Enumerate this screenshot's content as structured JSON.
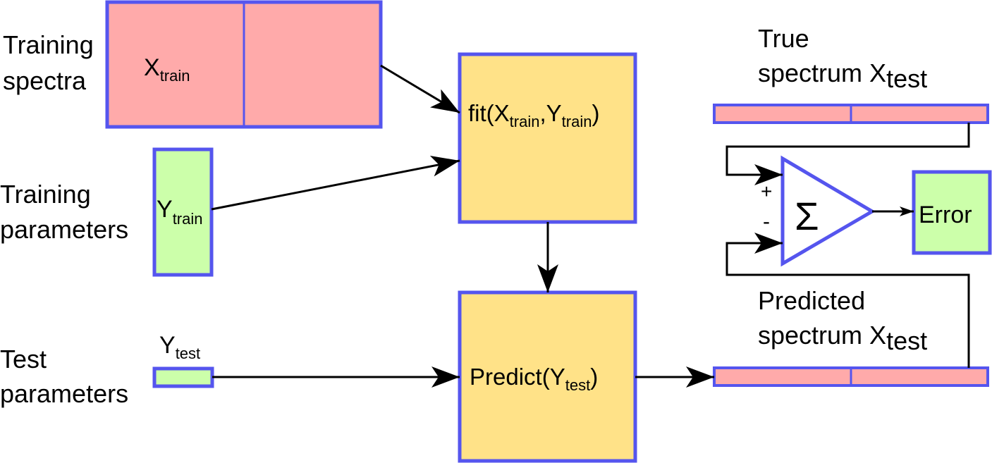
{
  "colors": {
    "border": "#5555ee",
    "spectra_fill": "#ffaaaa",
    "param_fill": "#ccffaa",
    "model_fill": "#ffe288",
    "error_fill": "#ccffaa",
    "arrow": "#000000"
  },
  "labels": {
    "training_spectra": [
      "Training",
      "spectra"
    ],
    "training_parameters": [
      "Training",
      "parameters"
    ],
    "test_parameters": [
      "Test",
      "parameters"
    ],
    "true_spectrum": [
      "True",
      "spectrum X",
      "test"
    ],
    "predicted_spectrum": [
      "Predicted",
      "spectrum X",
      "test"
    ]
  },
  "blocks": {
    "x_train": {
      "main": "X",
      "sub": "train"
    },
    "y_train": {
      "main": "Y",
      "sub": "train"
    },
    "y_test": {
      "main": "Y",
      "sub": "test"
    },
    "fit": {
      "pre": "fit(X",
      "sub1": "train",
      "mid": ",Y",
      "sub2": "train",
      "post": ")"
    },
    "predict": {
      "pre": "Predict(Y",
      "sub": "test",
      "post": ")"
    },
    "sum_symbol": "Σ",
    "plus": "+",
    "minus": "-",
    "error": "Error"
  }
}
